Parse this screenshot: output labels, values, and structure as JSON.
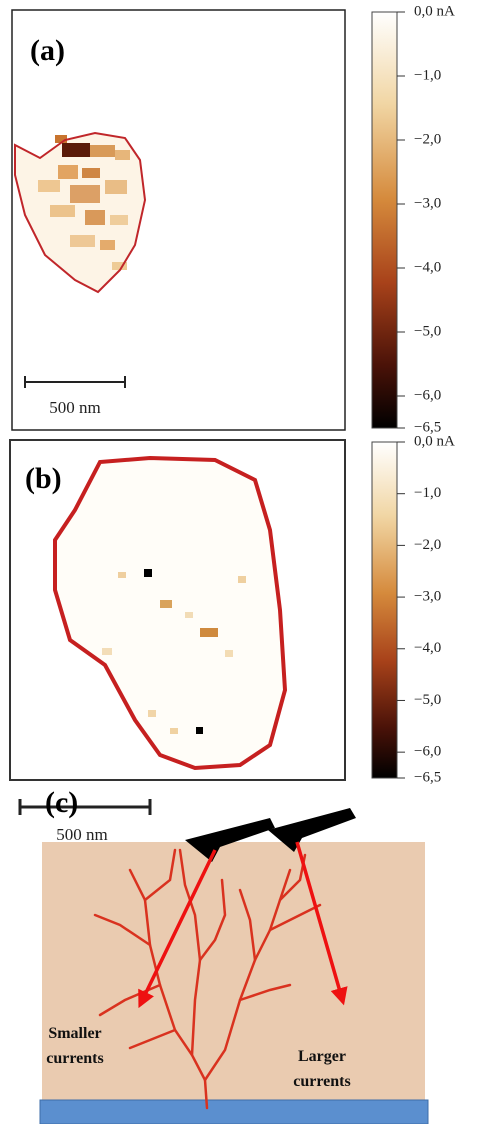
{
  "panels": [
    {
      "label": "(a)",
      "scale_bar": "500 nm",
      "colorbar": {
        "range": [
          -6.5,
          0
        ],
        "ticks": [
          {
            "value": 0,
            "label": "0,0 nA"
          },
          {
            "value": -1,
            "label": "−1,0"
          },
          {
            "value": -2,
            "label": "−2,0"
          },
          {
            "value": -3,
            "label": "−3,0"
          },
          {
            "value": -4,
            "label": "−4,0"
          },
          {
            "value": -5,
            "label": "−5,0"
          },
          {
            "value": -6,
            "label": "−6,0"
          },
          {
            "value": -6.5,
            "label": "−6,5"
          }
        ]
      }
    },
    {
      "label": "(b)",
      "scale_bar": "500 nm",
      "colorbar": {
        "range": [
          -6.5,
          0
        ],
        "ticks": [
          {
            "value": 0,
            "label": "0,0 nA"
          },
          {
            "value": -1,
            "label": "−1,0"
          },
          {
            "value": -2,
            "label": "−2,0"
          },
          {
            "value": -3,
            "label": "−3,0"
          },
          {
            "value": -4,
            "label": "−4,0"
          },
          {
            "value": -5,
            "label": "−5,0"
          },
          {
            "value": -6,
            "label": "−6,0"
          },
          {
            "value": -6.5,
            "label": "−6,5"
          }
        ]
      }
    }
  ],
  "schematic": {
    "label": "(c)",
    "annotations": [
      "Smaller currents",
      "Larger currents"
    ]
  }
}
